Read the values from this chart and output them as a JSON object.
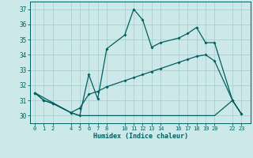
{
  "xlabel": "Humidex (Indice chaleur)",
  "bg_color": "#cce8e8",
  "grid_color": "#aacfcf",
  "line_color": "#005f5f",
  "xticks": [
    0,
    1,
    2,
    4,
    5,
    6,
    7,
    8,
    10,
    11,
    12,
    13,
    14,
    16,
    17,
    18,
    19,
    20,
    22,
    23
  ],
  "yticks": [
    30,
    31,
    32,
    33,
    34,
    35,
    36,
    37
  ],
  "ylim": [
    29.5,
    37.5
  ],
  "xlim": [
    -0.5,
    24.0
  ],
  "line1_x": [
    0,
    1,
    2,
    4,
    5,
    6,
    7,
    8,
    10,
    11,
    12,
    13,
    14,
    16,
    17,
    18,
    19,
    20,
    22,
    23
  ],
  "line1_y": [
    31.5,
    31.0,
    30.8,
    30.2,
    30.0,
    32.7,
    31.1,
    34.4,
    35.3,
    37.0,
    36.3,
    34.5,
    34.8,
    35.1,
    35.4,
    35.8,
    34.8,
    34.8,
    31.0,
    30.1
  ],
  "line2_x": [
    0,
    1,
    2,
    4,
    5,
    6,
    7,
    8,
    10,
    11,
    12,
    13,
    14,
    16,
    17,
    18,
    19,
    20,
    22,
    23
  ],
  "line2_y": [
    31.5,
    31.0,
    30.8,
    30.2,
    30.5,
    31.4,
    31.6,
    31.9,
    32.3,
    32.5,
    32.7,
    32.9,
    33.1,
    33.5,
    33.7,
    33.9,
    34.0,
    33.6,
    31.0,
    30.1
  ],
  "line3_x": [
    0,
    4,
    5,
    10,
    14,
    20,
    22,
    23
  ],
  "line3_y": [
    31.5,
    30.2,
    30.0,
    30.0,
    30.0,
    30.0,
    31.0,
    30.1
  ]
}
